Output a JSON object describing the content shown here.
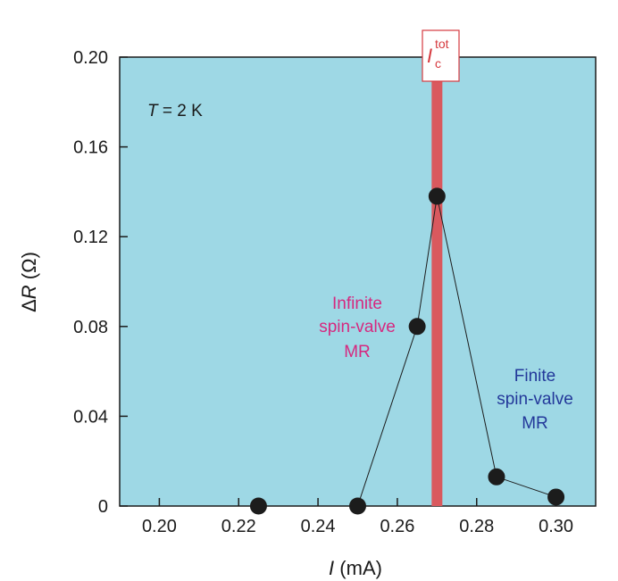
{
  "chart_data": {
    "type": "scatter",
    "x": [
      0.225,
      0.25,
      0.265,
      0.27,
      0.285,
      0.3
    ],
    "y": [
      0.0,
      0.0,
      0.08,
      0.138,
      0.013,
      0.004
    ],
    "xlabel_var": "I",
    "xlabel_unit": "(mA)",
    "ylabel_delta": "Δ",
    "ylabel_var": "R",
    "ylabel_unit": "(Ω)",
    "xlim": [
      0.19,
      0.31
    ],
    "ylim": [
      0,
      0.2
    ],
    "xticks": [
      0.2,
      0.22,
      0.24,
      0.26,
      0.28,
      0.3
    ],
    "xtick_labels": [
      "0.20",
      "0.22",
      "0.24",
      "0.26",
      "0.28",
      "0.30"
    ],
    "yticks": [
      0,
      0.04,
      0.08,
      0.12,
      0.16,
      0.2
    ],
    "ytick_labels": [
      "0",
      "0.04",
      "0.08",
      "0.12",
      "0.16",
      "0.20"
    ],
    "critical_current": {
      "x": 0.27,
      "label_main": "I",
      "label_sup": "tot",
      "label_sub": "c"
    },
    "temperature_label": {
      "var": "T",
      "rest": " = 2 K"
    },
    "annotations": {
      "infinite": [
        "Infinite",
        "spin-valve",
        "MR"
      ],
      "finite": [
        "Finite",
        "spin-valve",
        "MR"
      ]
    },
    "grid": false,
    "colors": {
      "background": "#9ed8e5",
      "marker": "#1c1c1c",
      "line": "#1c1c1c",
      "critical_band": "#d9595e",
      "critical_label": "#d63a3f",
      "infinite_text": "#d6287f",
      "finite_text": "#23389a"
    }
  }
}
